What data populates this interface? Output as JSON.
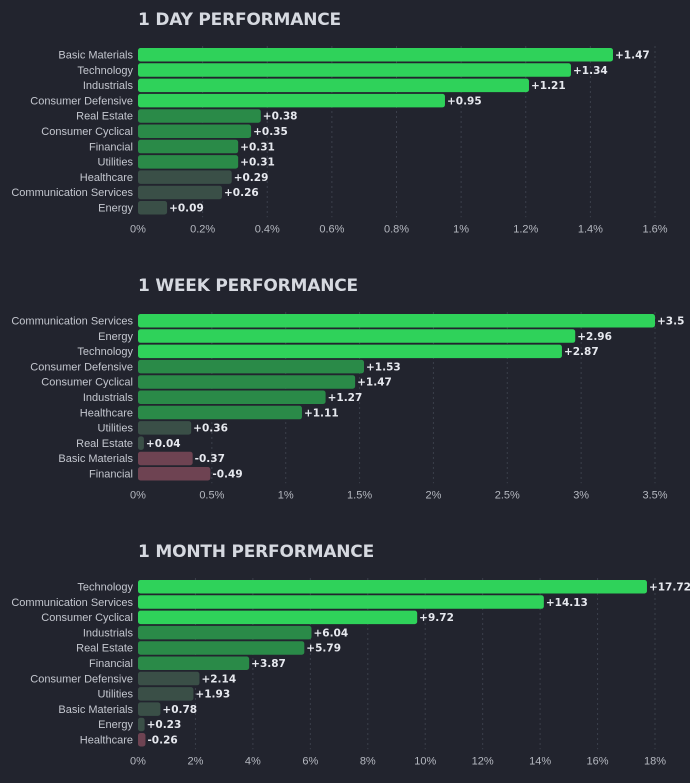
{
  "colors": {
    "background": "#22242e",
    "grid": "#3b3f4b",
    "text": "#c4c7cf",
    "positive_strong": "#2fd25a",
    "positive_mid": "#2a8a48",
    "positive_weak": "#3a4f47",
    "negative": "#6e4352"
  },
  "chart_data": [
    {
      "type": "bar",
      "orientation": "horizontal",
      "title": "1 DAY PERFORMANCE",
      "categories": [
        "Basic Materials",
        "Technology",
        "Industrials",
        "Consumer Defensive",
        "Real Estate",
        "Consumer Cyclical",
        "Financial",
        "Utilities",
        "Healthcare",
        "Communication Services",
        "Energy"
      ],
      "values": [
        1.47,
        1.34,
        1.21,
        0.95,
        0.38,
        0.35,
        0.31,
        0.31,
        0.29,
        0.26,
        0.09
      ],
      "value_labels": [
        "+1.47",
        "+1.34",
        "+1.21",
        "+0.95",
        "+0.38",
        "+0.35",
        "+0.31",
        "+0.31",
        "+0.29",
        "+0.26",
        "+0.09"
      ],
      "xlim": [
        0,
        1.6
      ],
      "xticks": [
        0,
        0.2,
        0.4,
        0.6,
        0.8,
        1,
        1.2,
        1.4,
        1.6
      ],
      "xtick_labels": [
        "0%",
        "0.2%",
        "0.4%",
        "0.6%",
        "0.8%",
        "1%",
        "1.2%",
        "1.4%",
        "1.6%"
      ],
      "grid": true
    },
    {
      "type": "bar",
      "orientation": "horizontal",
      "title": "1 WEEK PERFORMANCE",
      "categories": [
        "Communication Services",
        "Energy",
        "Technology",
        "Consumer Defensive",
        "Consumer Cyclical",
        "Industrials",
        "Healthcare",
        "Utilities",
        "Real Estate",
        "Basic Materials",
        "Financial"
      ],
      "values": [
        3.5,
        2.96,
        2.87,
        1.53,
        1.47,
        1.27,
        1.11,
        0.36,
        0.04,
        -0.37,
        -0.49
      ],
      "value_labels": [
        "+3.5",
        "+2.96",
        "+2.87",
        "+1.53",
        "+1.47",
        "+1.27",
        "+1.11",
        "+0.36",
        "+0.04",
        "-0.37",
        "-0.49"
      ],
      "xlim": [
        0,
        3.5
      ],
      "xticks": [
        0,
        0.5,
        1,
        1.5,
        2,
        2.5,
        3,
        3.5
      ],
      "xtick_labels": [
        "0%",
        "0.5%",
        "1%",
        "1.5%",
        "2%",
        "2.5%",
        "3%",
        "3.5%"
      ],
      "grid": true
    },
    {
      "type": "bar",
      "orientation": "horizontal",
      "title": "1 MONTH PERFORMANCE",
      "categories": [
        "Technology",
        "Communication Services",
        "Consumer Cyclical",
        "Industrials",
        "Real Estate",
        "Financial",
        "Consumer Defensive",
        "Utilities",
        "Basic Materials",
        "Energy",
        "Healthcare"
      ],
      "values": [
        17.72,
        14.13,
        9.72,
        6.04,
        5.79,
        3.87,
        2.14,
        1.93,
        0.78,
        0.23,
        -0.26
      ],
      "value_labels": [
        "+17.72",
        "+14.13",
        "+9.72",
        "+6.04",
        "+5.79",
        "+3.87",
        "+2.14",
        "+1.93",
        "+0.78",
        "+0.23",
        "-0.26"
      ],
      "xlim": [
        0,
        18
      ],
      "xticks": [
        0,
        2,
        4,
        6,
        8,
        10,
        12,
        14,
        16,
        18
      ],
      "xtick_labels": [
        "0%",
        "2%",
        "4%",
        "6%",
        "8%",
        "10%",
        "12%",
        "14%",
        "16%",
        "18%"
      ],
      "grid": true
    }
  ]
}
